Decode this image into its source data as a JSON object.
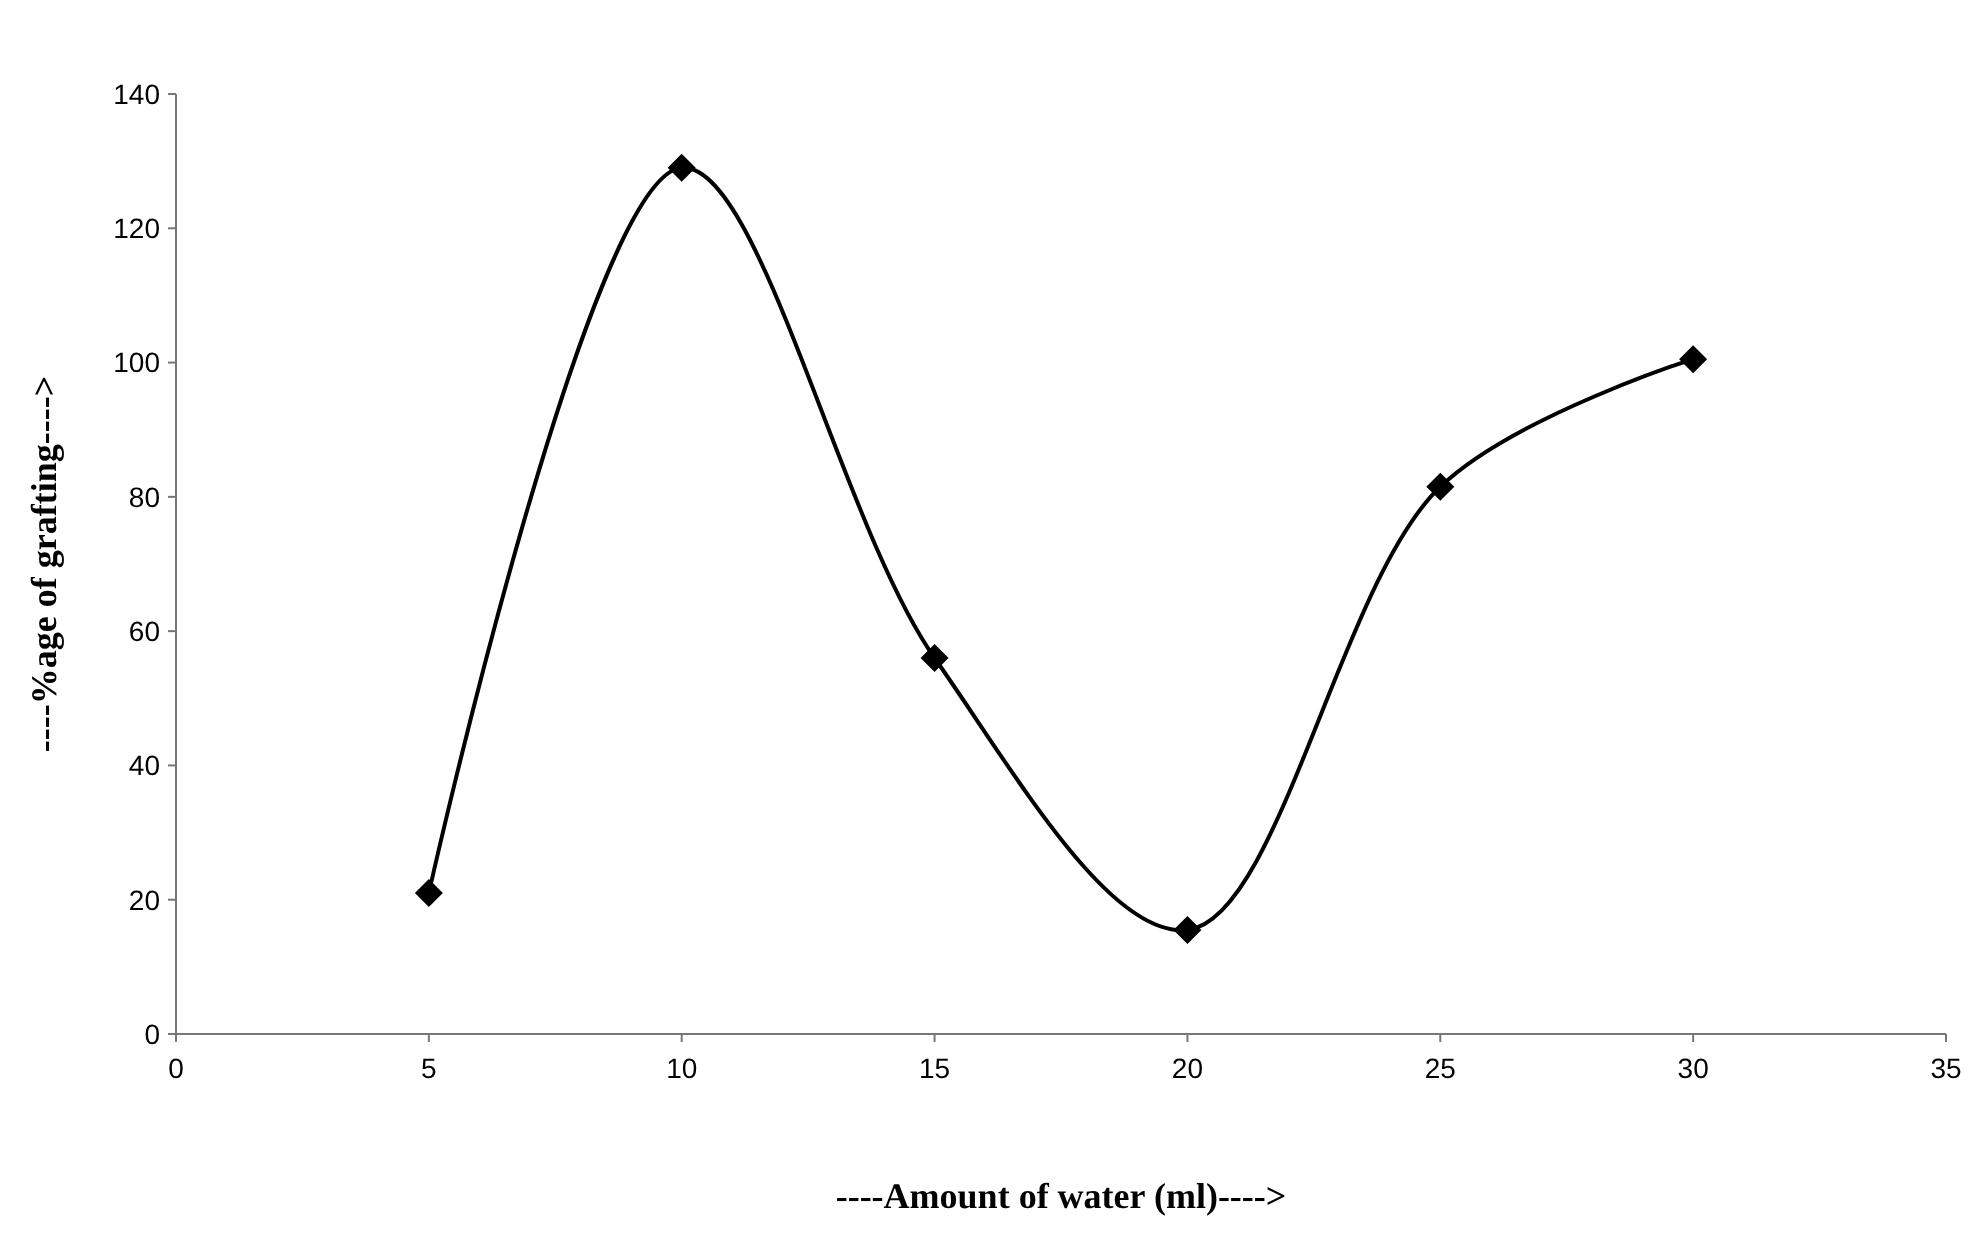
{
  "chart_data": {
    "type": "line",
    "xlabel": "----Amount of water (ml)---->",
    "ylabel": "----%age of grafting---->",
    "x": [
      5,
      10,
      15,
      20,
      25,
      30
    ],
    "series": [
      {
        "color": "#000000",
        "values": [
          21,
          129,
          56,
          15.5,
          81.5,
          100.5
        ]
      }
    ],
    "xlim": [
      0,
      35
    ],
    "xticks": [
      0,
      5,
      10,
      15,
      20,
      25,
      30,
      35
    ],
    "ylim": [
      0,
      140
    ],
    "yticks": [
      0,
      20,
      40,
      60,
      80,
      100,
      120,
      140
    ],
    "marker": "diamond",
    "line_style": "solid",
    "grid": false
  }
}
